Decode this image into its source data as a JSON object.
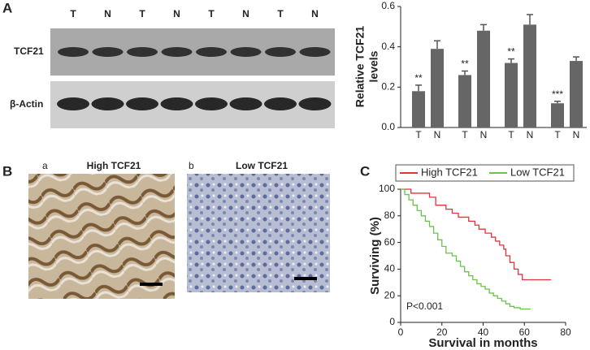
{
  "figure": {
    "panels": [
      "A",
      "B",
      "C"
    ],
    "blot": {
      "lanes": [
        "T",
        "N",
        "T",
        "N",
        "T",
        "N",
        "T",
        "N"
      ],
      "rows": [
        "TCF21",
        "β-Actin"
      ]
    },
    "ihc": [
      {
        "letter": "a",
        "label": "High TCF21"
      },
      {
        "letter": "b",
        "label": "Low TCF21"
      }
    ]
  },
  "chart_data": [
    {
      "type": "bar",
      "ylabel": [
        "Relative TCF21",
        "levels"
      ],
      "categories": [
        "T",
        "N",
        "T",
        "N",
        "T",
        "N",
        "T",
        "N"
      ],
      "values": [
        0.18,
        0.39,
        0.26,
        0.48,
        0.32,
        0.51,
        0.12,
        0.33
      ],
      "errors": [
        0.03,
        0.04,
        0.02,
        0.03,
        0.02,
        0.05,
        0.01,
        0.02
      ],
      "annotations": [
        "**",
        null,
        "**",
        null,
        "**",
        null,
        "***",
        null
      ],
      "color": "#666666",
      "ylim": [
        0,
        0.6
      ],
      "yticks": [
        {
          "value": 0,
          "label": "0.0"
        },
        0.2,
        0.4,
        0.6
      ]
    },
    {
      "type": "line",
      "step": true,
      "xlabel": "Survival in months",
      "ylabel": "Surviving (%)",
      "annotation": "P<0.001",
      "legend": "top",
      "series": [
        {
          "name": "High TCF21",
          "color": "#e0353b",
          "x": [
            0,
            5,
            14,
            17,
            22,
            25,
            28,
            33,
            36,
            38,
            41,
            44,
            46,
            48,
            50,
            51,
            53,
            55,
            57,
            59,
            73
          ],
          "values": [
            100,
            97,
            94,
            88,
            85,
            82,
            79,
            76,
            73,
            70,
            67,
            64,
            61,
            58,
            55,
            50,
            45,
            40,
            36,
            32,
            32
          ]
        },
        {
          "name": "Low TCF21",
          "color": "#6cc24a",
          "x": [
            0,
            2,
            4,
            6,
            8,
            10,
            12,
            14,
            16,
            18,
            20,
            22,
            25,
            27,
            29,
            31,
            33,
            35,
            37,
            39,
            41,
            43,
            45,
            47,
            49,
            51,
            53,
            55,
            58,
            63
          ],
          "values": [
            100,
            96,
            92,
            88,
            84,
            80,
            76,
            72,
            67,
            62,
            57,
            52,
            50,
            46,
            42,
            38,
            35,
            32,
            29,
            27,
            25,
            22,
            20,
            18,
            16,
            14,
            12,
            11,
            10,
            10
          ]
        }
      ],
      "xlim": [
        0,
        80
      ],
      "xticks": [
        0,
        20,
        40,
        60,
        80
      ],
      "ylim": [
        0,
        100
      ],
      "yticks": [
        0,
        20,
        40,
        60,
        80,
        100
      ]
    }
  ]
}
